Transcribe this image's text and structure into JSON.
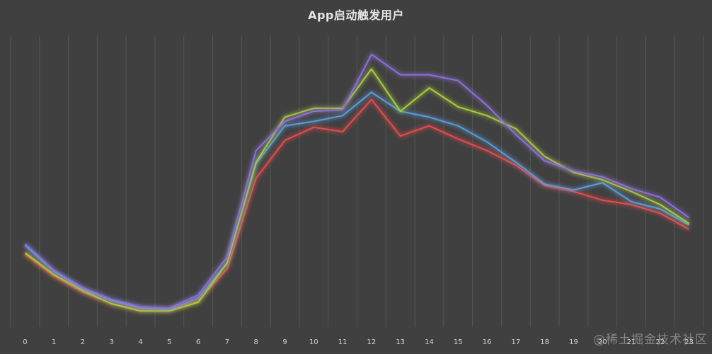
{
  "chart_data": {
    "type": "line",
    "title": "App启动触发用户",
    "xlabel": "",
    "ylabel": "",
    "categories": [
      "0",
      "1",
      "2",
      "3",
      "4",
      "5",
      "6",
      "7",
      "8",
      "9",
      "10",
      "11",
      "12",
      "13",
      "14",
      "15",
      "16",
      "17",
      "18",
      "19",
      "20",
      "21",
      "22",
      "23"
    ],
    "ylim": [
      0,
      100
    ],
    "grid": "vertical",
    "series": [
      {
        "color": "#e64b4b",
        "values": [
          25,
          17.5,
          12,
          8,
          6,
          6,
          9,
          20,
          51,
          64,
          68.5,
          67,
          78,
          65.5,
          69,
          64.5,
          60.5,
          55.5,
          48.5,
          46.5,
          43.5,
          42,
          39,
          33.5
        ]
      },
      {
        "color": "#5b9bd5",
        "values": [
          28,
          19,
          13,
          9,
          6.5,
          6,
          10,
          22,
          56,
          69,
          70.5,
          72.5,
          80.5,
          74,
          72,
          69,
          63.5,
          56.5,
          49,
          47,
          49.5,
          43,
          40.5,
          35
        ]
      },
      {
        "color": "#a8cc3c",
        "values": [
          25.5,
          18,
          12.5,
          8,
          5.5,
          5.5,
          8.5,
          22,
          56.5,
          72,
          75,
          75,
          88.5,
          74,
          82,
          75.5,
          72.5,
          68,
          58.5,
          53,
          50.5,
          46.5,
          42,
          35.5
        ]
      },
      {
        "color": "#8e6fd6",
        "values": [
          28.5,
          19.5,
          13.5,
          9.5,
          7,
          6.5,
          11,
          24,
          60.5,
          70.5,
          74,
          74.5,
          93.5,
          86.5,
          86.5,
          84.5,
          76,
          66,
          57,
          53.5,
          51.5,
          47.5,
          44.5,
          37.5
        ]
      }
    ]
  },
  "watermark": "@稀土掘金技术社区"
}
